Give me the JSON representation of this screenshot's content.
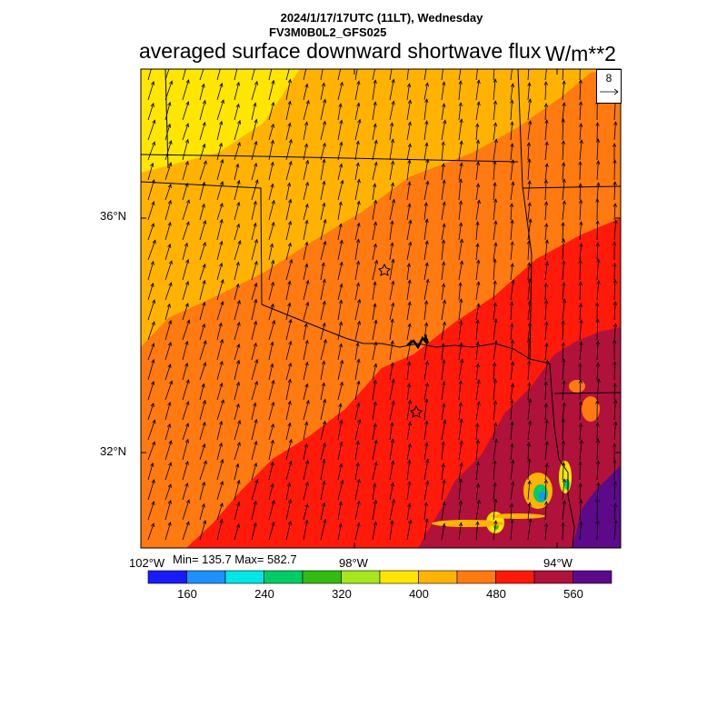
{
  "header": {
    "line1": "2024/1/17/17UTC (11LT), Wednesday",
    "line2": "FV3M0B0L2_GFS025",
    "title": "averaged surface downward shortwave flux",
    "units": "W/m**2"
  },
  "map": {
    "lat_labels": [
      "36°N",
      "32°N"
    ],
    "lon_labels": [
      "102°W",
      "98°W",
      "94°W"
    ],
    "station_markers": 2,
    "wind_vector_ref": "8"
  },
  "stats": {
    "text": "Min= 135.7 Max= 582.7",
    "min": 135.7,
    "max": 582.7
  },
  "colorbar": {
    "colors": [
      "#1a1aff",
      "#1e90ff",
      "#00e5e5",
      "#00cc66",
      "#33bb11",
      "#a8e61d",
      "#ffe600",
      "#ffb300",
      "#ff7a10",
      "#ff1a0a",
      "#b0123c",
      "#5c0a8a"
    ],
    "tick_labels": [
      "160",
      "240",
      "320",
      "400",
      "480",
      "560"
    ]
  },
  "field_colors": {
    "yellow": "#ffe600",
    "light_orange": "#ffb300",
    "orange": "#ff7a10",
    "red": "#ff1a0a",
    "crimson": "#b0123c",
    "purple": "#5c0a8a"
  }
}
